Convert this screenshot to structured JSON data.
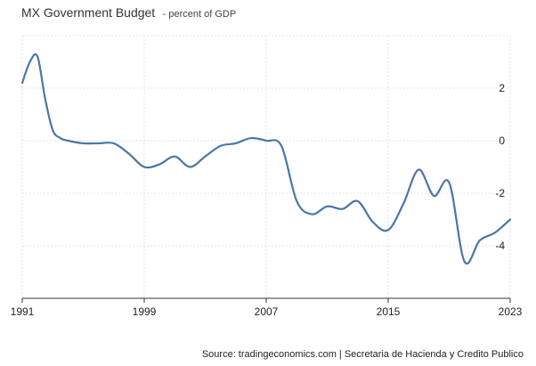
{
  "header": {
    "title": "MX Government Budget",
    "subtitle": "- percent of GDP"
  },
  "footer": {
    "source": "Source: tradingeconomics.com | Secretaria de Hacienda y Credito Publico"
  },
  "colors": {
    "line": "#4a76a8",
    "grid": "#e3e3e3",
    "axis": "#333333"
  },
  "chart_data": {
    "type": "line",
    "title": "MX Government Budget",
    "subtitle": "- percent of GDP",
    "xlim": [
      1991,
      2023
    ],
    "ylim": [
      -6,
      4
    ],
    "x_ticks": [
      1991,
      1999,
      2007,
      2015,
      2023
    ],
    "y_ticks": [
      2,
      0,
      -2,
      -4
    ],
    "grid": true,
    "y_axis_side": "right",
    "series": [
      {
        "x": [
          1991,
          1991.5,
          1992,
          1992.5,
          1993,
          1993.5,
          1994,
          1995,
          1996,
          1997,
          1998,
          1999,
          2000,
          2001,
          2002,
          2003,
          2004,
          2005,
          2006,
          2007,
          2008,
          2009,
          2010,
          2011,
          2012,
          2013,
          2014,
          2015,
          2016,
          2017,
          2018,
          2019,
          2020,
          2021,
          2022,
          2023
        ],
        "values": [
          2.2,
          3.0,
          3.2,
          1.6,
          0.4,
          0.1,
          0.0,
          -0.1,
          -0.1,
          -0.1,
          -0.5,
          -1.0,
          -0.9,
          -0.6,
          -1.0,
          -0.6,
          -0.2,
          -0.1,
          0.1,
          0.0,
          -0.2,
          -2.3,
          -2.8,
          -2.5,
          -2.6,
          -2.3,
          -3.1,
          -3.4,
          -2.4,
          -1.1,
          -2.1,
          -1.6,
          -4.6,
          -3.8,
          -3.5,
          -3.0
        ]
      }
    ]
  }
}
